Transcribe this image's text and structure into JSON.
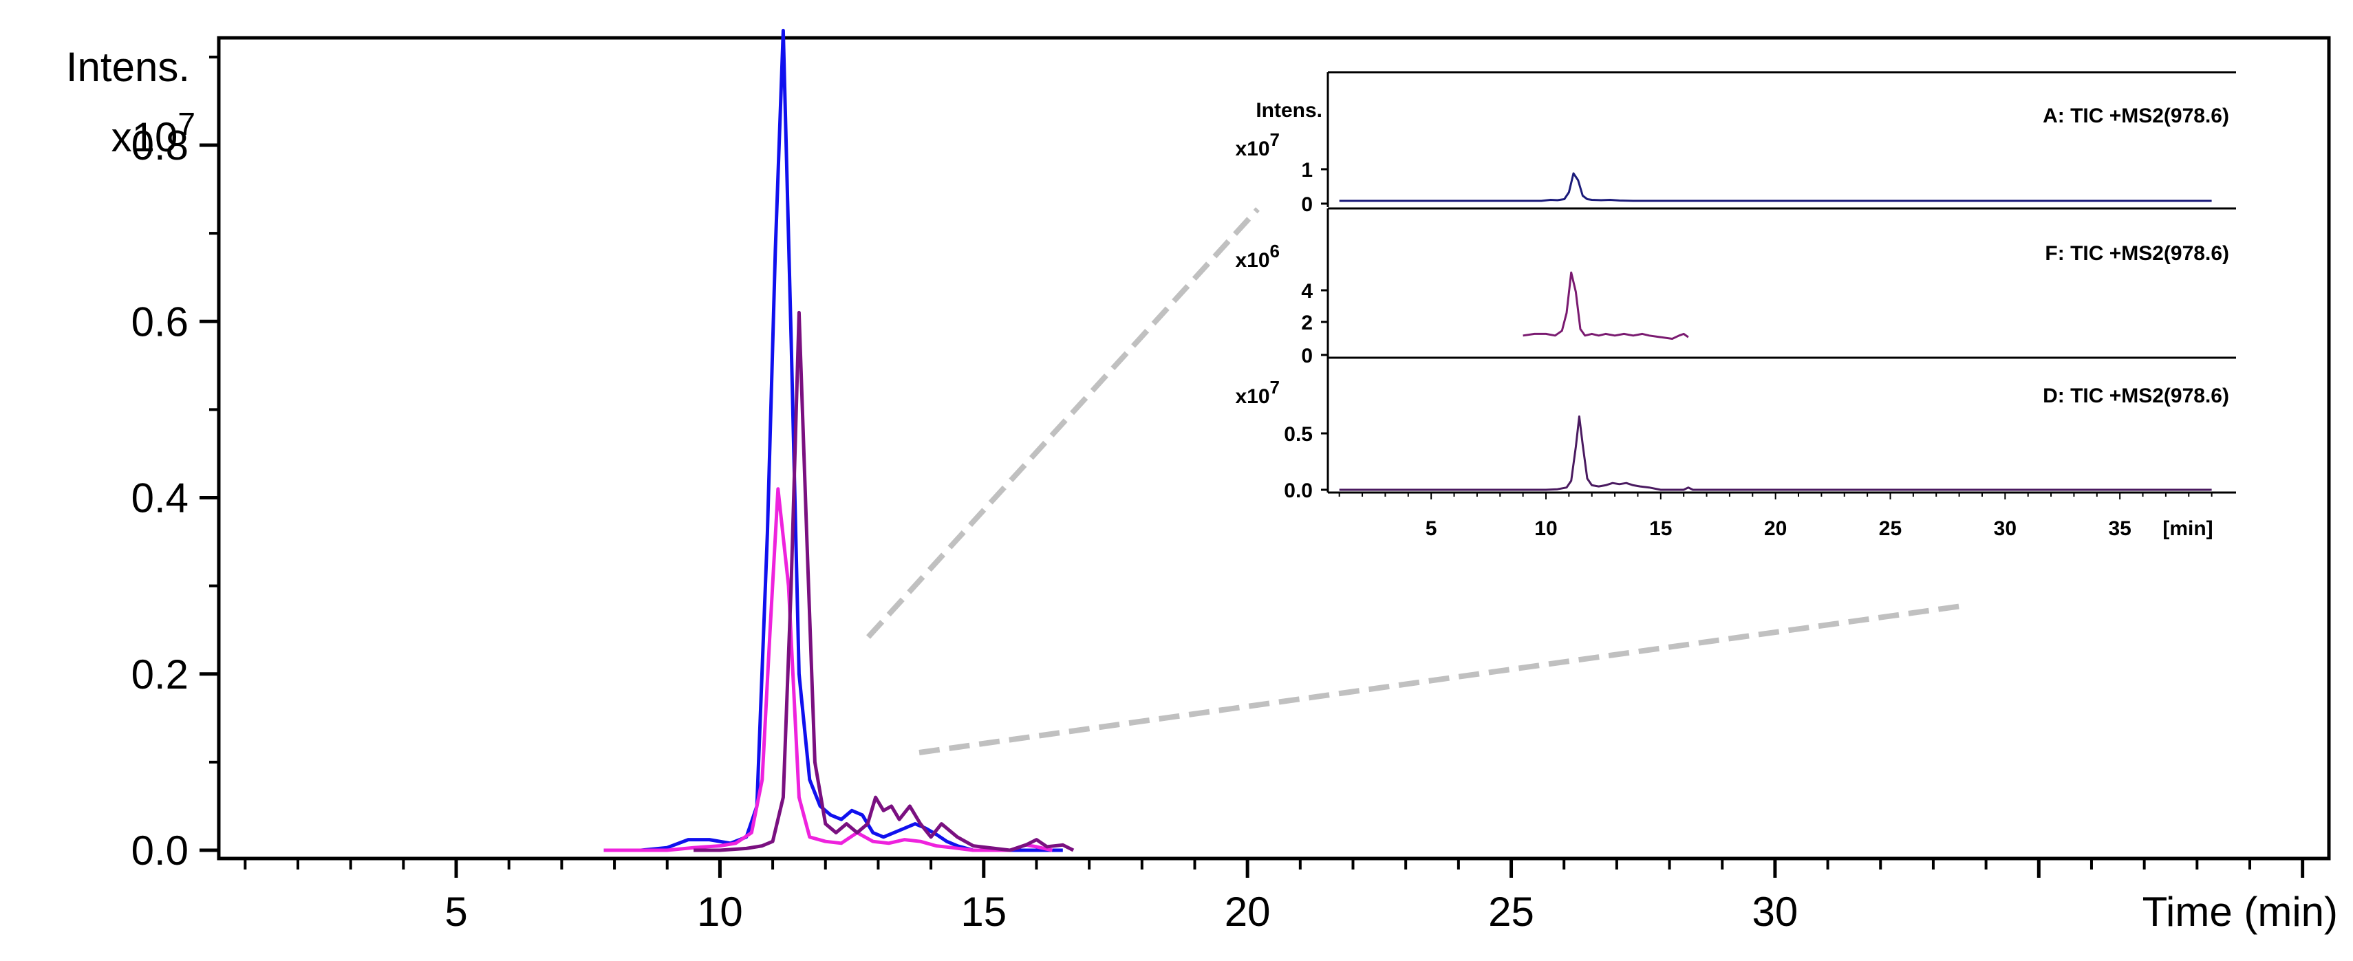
{
  "chart_data": [
    {
      "type": "line",
      "ylabel_line1": "Intens.",
      "ylabel_mult": "x10",
      "ylabel_exp": "7",
      "xlabel": "Time (min)",
      "xlim": [
        0.5,
        40.5
      ],
      "ylim": [
        0,
        1.05
      ],
      "x_ticks": [
        5,
        10,
        15,
        20,
        25,
        30
      ],
      "y_ticks": [
        0.0,
        0.2,
        0.4,
        0.6,
        0.8
      ],
      "y_tick_labels": [
        "0.0",
        "0.2",
        "0.4",
        "0.6",
        "0.8"
      ],
      "grid": false,
      "series": [
        {
          "color": "#1010ee",
          "x": [
            7.8,
            8.5,
            9.0,
            9.4,
            9.8,
            10.2,
            10.5,
            10.7,
            10.9,
            11.05,
            11.2,
            11.35,
            11.5,
            11.7,
            11.9,
            12.1,
            12.3,
            12.5,
            12.7,
            12.9,
            13.1,
            13.3,
            13.5,
            13.7,
            13.9,
            14.1,
            14.3,
            14.5,
            14.8,
            15.5,
            16.0,
            16.5
          ],
          "y": [
            0.0,
            0.0,
            0.003,
            0.012,
            0.012,
            0.008,
            0.015,
            0.05,
            0.36,
            0.68,
            0.93,
            0.58,
            0.2,
            0.08,
            0.05,
            0.04,
            0.035,
            0.045,
            0.04,
            0.02,
            0.015,
            0.02,
            0.025,
            0.03,
            0.025,
            0.018,
            0.01,
            0.005,
            0.0,
            0.0,
            0.0,
            0.0
          ]
        },
        {
          "color": "#ee22dd",
          "x": [
            7.8,
            8.5,
            9.0,
            9.5,
            10.0,
            10.3,
            10.6,
            10.8,
            10.95,
            11.1,
            11.3,
            11.5,
            11.7,
            12.0,
            12.3,
            12.6,
            12.9,
            13.2,
            13.5,
            13.8,
            14.1,
            14.4,
            14.8,
            15.5,
            15.8,
            16.0,
            16.3
          ],
          "y": [
            0.0,
            0.0,
            0.0,
            0.003,
            0.005,
            0.008,
            0.02,
            0.08,
            0.25,
            0.41,
            0.3,
            0.06,
            0.015,
            0.01,
            0.008,
            0.02,
            0.01,
            0.008,
            0.012,
            0.01,
            0.005,
            0.003,
            0.0,
            0.0,
            0.006,
            0.004,
            0.0
          ]
        },
        {
          "color": "#7a1080",
          "x": [
            9.5,
            10.0,
            10.5,
            10.8,
            11.0,
            11.2,
            11.35,
            11.5,
            11.65,
            11.8,
            12.0,
            12.2,
            12.4,
            12.6,
            12.8,
            12.95,
            13.1,
            13.25,
            13.4,
            13.6,
            13.8,
            14.0,
            14.2,
            14.5,
            14.8,
            15.5,
            15.8,
            16.0,
            16.2,
            16.5,
            16.7
          ],
          "y": [
            0.0,
            0.0,
            0.002,
            0.005,
            0.01,
            0.06,
            0.3,
            0.61,
            0.35,
            0.1,
            0.03,
            0.02,
            0.03,
            0.02,
            0.03,
            0.06,
            0.045,
            0.05,
            0.035,
            0.05,
            0.03,
            0.015,
            0.03,
            0.015,
            0.005,
            0.0,
            0.006,
            0.012,
            0.004,
            0.006,
            0.0
          ]
        }
      ]
    },
    {
      "type": "line",
      "panels": [
        {
          "title": "A: TIC +MS2(978.6)",
          "ylabel_line1": "Intens.",
          "ylabel_mult": "x10",
          "ylabel_exp": "7",
          "y_tick_labels": [
            "0",
            "1"
          ],
          "y_ticks": [
            0,
            1
          ],
          "ylim": [
            0,
            2.0
          ],
          "color": "#1a1a7a",
          "x": [
            1.0,
            9.8,
            10.2,
            10.5,
            10.8,
            11.0,
            11.2,
            11.4,
            11.6,
            11.8,
            12.0,
            12.4,
            12.8,
            13.2,
            13.8,
            20.0,
            30.0,
            39.0
          ],
          "y": [
            0.0,
            0.0,
            0.03,
            0.02,
            0.05,
            0.25,
            0.8,
            0.6,
            0.15,
            0.05,
            0.03,
            0.02,
            0.03,
            0.01,
            0.0,
            0.0,
            0.0,
            0.0
          ]
        },
        {
          "title": "F: TIC +MS2(978.6)",
          "ylabel_mult": "x10",
          "ylabel_exp": "6",
          "y_tick_labels": [
            "0",
            "2",
            "4"
          ],
          "y_ticks": [
            0,
            2,
            4
          ],
          "ylim": [
            0,
            6.6
          ],
          "color": "#7a1a70",
          "x": [
            9.0,
            9.5,
            10.0,
            10.4,
            10.7,
            10.9,
            11.1,
            11.3,
            11.5,
            11.7,
            12.0,
            12.3,
            12.6,
            13.0,
            13.4,
            13.8,
            14.2,
            14.5,
            15.5,
            15.8,
            16.0,
            16.2
          ],
          "y": [
            1.2,
            1.3,
            1.3,
            1.2,
            1.5,
            2.6,
            5.1,
            3.9,
            1.6,
            1.2,
            1.3,
            1.2,
            1.3,
            1.2,
            1.3,
            1.2,
            1.3,
            1.2,
            1.0,
            1.2,
            1.3,
            1.1
          ]
        },
        {
          "title": "D: TIC +MS2(978.6)",
          "ylabel_mult": "x10",
          "ylabel_exp": "7",
          "y_tick_labels": [
            "0.0",
            "0.5"
          ],
          "y_ticks": [
            0.0,
            0.5
          ],
          "ylim": [
            0,
            0.95
          ],
          "color": "#4a1a60",
          "x": [
            1.0,
            10.0,
            10.5,
            10.9,
            11.1,
            11.3,
            11.45,
            11.6,
            11.8,
            12.0,
            12.3,
            12.6,
            12.9,
            13.2,
            13.5,
            13.8,
            14.1,
            14.5,
            15.0,
            16.0,
            16.2,
            16.4,
            20.0,
            30.0,
            39.0
          ],
          "y": [
            0.0,
            0.0,
            0.005,
            0.02,
            0.08,
            0.38,
            0.65,
            0.4,
            0.1,
            0.04,
            0.03,
            0.04,
            0.06,
            0.05,
            0.06,
            0.04,
            0.03,
            0.02,
            0.0,
            0.0,
            0.02,
            0.0,
            0.0,
            0.0,
            0.0
          ]
        }
      ],
      "xlim": [
        0.5,
        40.0
      ],
      "x_ticks": [
        5,
        10,
        15,
        20,
        25,
        30,
        35
      ],
      "xlabel": "[min]"
    }
  ]
}
